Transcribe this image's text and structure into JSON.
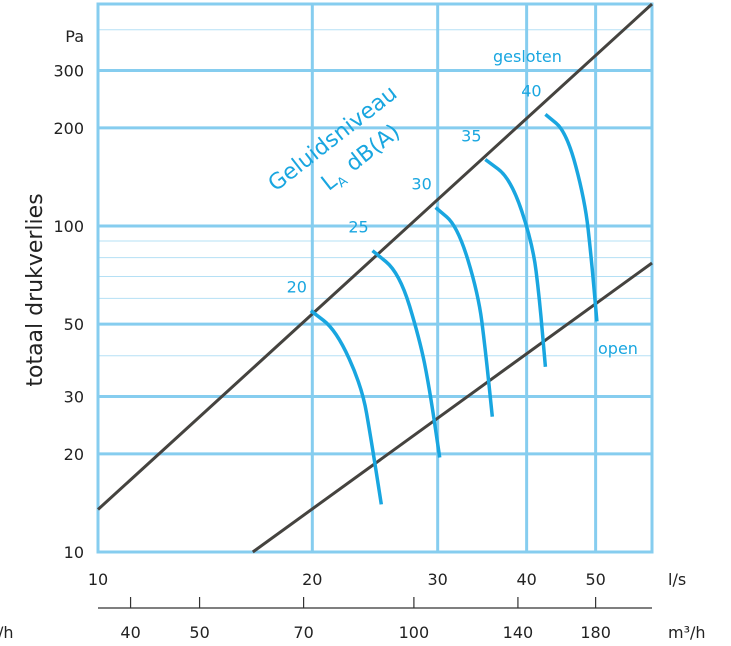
{
  "chart_data": {
    "type": "line",
    "xscale": "log",
    "yscale": "log",
    "xlim": [
      10,
      60
    ],
    "ylim": [
      10,
      480
    ],
    "x_ticks": [
      "10",
      "20",
      "30",
      "40",
      "50"
    ],
    "x_unit": "l/s",
    "x2_ticks": [
      "40",
      "50",
      "70",
      "100",
      "140",
      "180"
    ],
    "x2_unit": "m³/h",
    "x2_left_partial": "/h",
    "y_ticks": [
      "10",
      "20",
      "30",
      "50",
      "100",
      "200",
      "300"
    ],
    "y_unit": "Pa",
    "ylabel": "totaal drukverlies",
    "grid": true,
    "annotation": {
      "line1": "Geluidsniveau",
      "line2_main": "L",
      "line2_sub": "A",
      "line2_rest": "dB(A)"
    },
    "series": [
      {
        "name": "gesloten",
        "x": [
          10,
          60
        ],
        "y": [
          13.5,
          480
        ]
      },
      {
        "name": "open",
        "x": [
          16.5,
          60
        ],
        "y": [
          10,
          77
        ]
      }
    ],
    "sound_curves": [
      {
        "label": "20",
        "x": [
          19.9,
          21.6,
          23.5,
          24.2,
          25.0
        ],
        "y": [
          55,
          48,
          32,
          22,
          14
        ]
      },
      {
        "label": "25",
        "x": [
          24.3,
          26.5,
          28.3,
          29.2,
          30.2
        ],
        "y": [
          84,
          72,
          45,
          32,
          19.5
        ]
      },
      {
        "label": "30",
        "x": [
          29.8,
          32.0,
          34.2,
          35.0,
          35.8
        ],
        "y": [
          114,
          100,
          62,
          42,
          26
        ]
      },
      {
        "label": "35",
        "x": [
          35.0,
          38.0,
          40.8,
          41.7,
          42.5
        ],
        "y": [
          160,
          140,
          88,
          60,
          37
        ]
      },
      {
        "label": "40",
        "x": [
          42.5,
          45.5,
          48.3,
          49.3,
          50.2
        ],
        "y": [
          220,
          195,
          120,
          80,
          51
        ]
      }
    ]
  }
}
